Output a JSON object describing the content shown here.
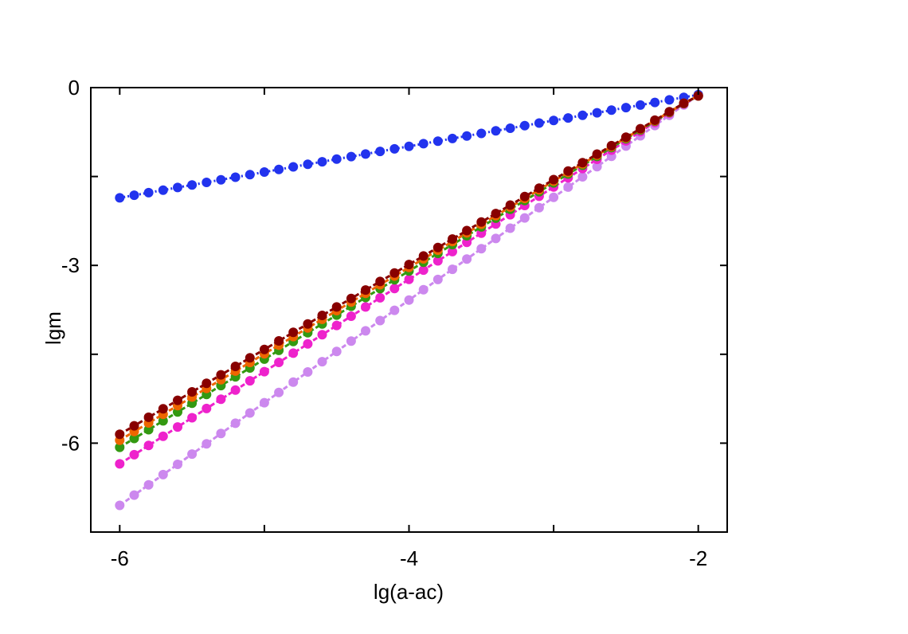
{
  "chart_data": {
    "type": "line",
    "title": "",
    "xlabel": "lg(a-ac)",
    "ylabel": "lgm",
    "xlim": [
      -6.2,
      -1.8
    ],
    "ylim": [
      -7.5,
      0
    ],
    "x_ticks": [
      -6,
      -4,
      -2
    ],
    "x_tick_labels": [
      "-6",
      "-4",
      "-2"
    ],
    "y_ticks": [
      0,
      -3,
      -6
    ],
    "y_tick_labels": [
      "0",
      "-3",
      "-6"
    ],
    "x_minor_ticks": [
      -5,
      -3
    ],
    "y_minor_ticks": [
      -1.5,
      -4.5
    ],
    "grid": false,
    "legend": "none",
    "series": [
      {
        "color": "#2233ee",
        "dash": "2,3",
        "start": -1.85,
        "slope": 0.5,
        "n": 1,
        "p": 3
      },
      {
        "color": "#cc88ee",
        "dash": "6,3",
        "start": -7.05,
        "slope": 1.88,
        "n": 1,
        "p": 3
      },
      {
        "color": "#ee22cc",
        "dash": "6,3",
        "start": -6.35,
        "slope": 1.79,
        "n": 1,
        "p": 3
      },
      {
        "color": "#339911",
        "dash": "6,3",
        "start": -6.07,
        "slope": 1.72,
        "n": 1,
        "p": 3
      },
      {
        "color": "#ee6600",
        "dash": "6,3",
        "start": -5.95,
        "slope": 1.7,
        "n": 1,
        "p": 3
      },
      {
        "color": "#880000",
        "dash": "6,3",
        "start": -5.85,
        "slope": 1.68,
        "n": 1,
        "p": 3
      }
    ],
    "x_start": -6.0,
    "x_end": -2.0,
    "x_step": 0.1
  }
}
